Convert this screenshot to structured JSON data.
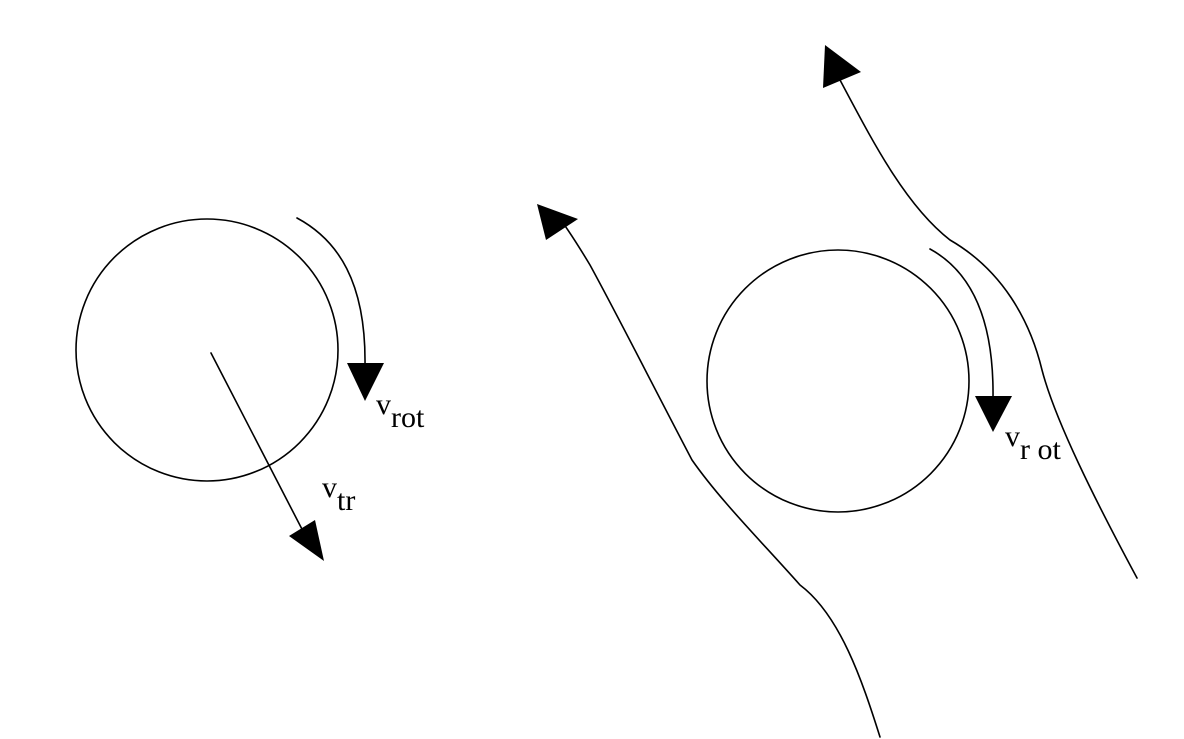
{
  "colors": {
    "background": "#ffffff",
    "ink": "#000000"
  },
  "left_figure": {
    "rotation_label": {
      "main": "v",
      "sub": "rot"
    },
    "translation_label": {
      "main": "v",
      "sub": "tr"
    }
  },
  "right_figure": {
    "rotation_label": {
      "main": "v",
      "sub": "r ot"
    }
  }
}
